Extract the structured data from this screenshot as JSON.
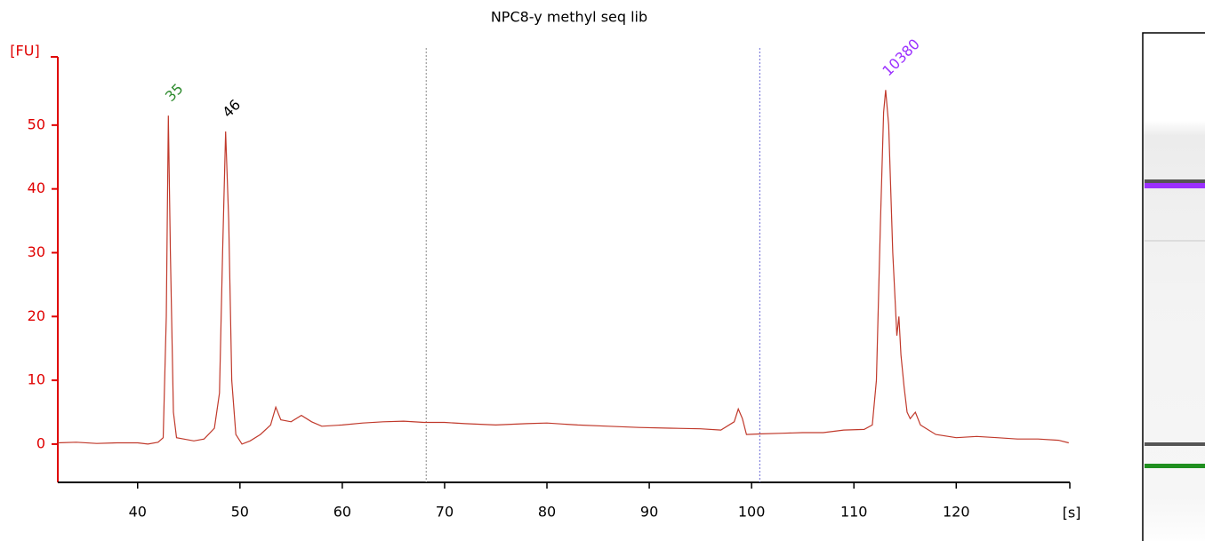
{
  "chart_data": {
    "type": "line",
    "title": "NPC8-y methyl seq lib",
    "y_label": "[FU]",
    "x_label": "[s]",
    "xlim": [
      32.2,
      131.1
    ],
    "ylim": [
      -6,
      60.7
    ],
    "xticks": [
      40,
      50,
      60,
      70,
      80,
      90,
      100,
      110,
      120
    ],
    "yticks": [
      0,
      10,
      20,
      30,
      40,
      50
    ],
    "y_axis_color": "#e00000",
    "region_lines": [
      68.2,
      100.8
    ],
    "x": [
      32.2,
      34,
      36,
      38,
      40,
      41,
      42,
      42.5,
      42.8,
      43.0,
      43.2,
      43.5,
      43.8,
      44.5,
      45.5,
      46.5,
      47.5,
      48.0,
      48.3,
      48.6,
      48.9,
      49.2,
      49.6,
      50.2,
      51,
      52,
      53,
      53.5,
      54,
      55,
      56,
      57,
      58,
      60,
      62,
      64,
      66,
      68,
      70,
      72,
      75,
      78,
      80,
      83,
      86,
      89,
      92,
      95,
      97,
      98.3,
      98.7,
      99.1,
      99.5,
      101,
      103,
      105,
      107,
      109,
      111,
      111.8,
      112.2,
      112.6,
      112.9,
      113.1,
      113.4,
      113.8,
      114.2,
      114.4,
      114.6,
      114.9,
      115.2,
      115.5,
      116,
      116.5,
      117,
      118,
      120,
      122,
      124,
      126,
      128,
      130,
      131
    ],
    "series": [
      {
        "color": "#c0392b",
        "values": [
          0.2,
          0.3,
          0.1,
          0.2,
          0.2,
          0.0,
          0.3,
          1.0,
          20,
          51.5,
          30,
          5,
          1.0,
          0.8,
          0.5,
          0.8,
          2.5,
          8,
          30,
          49,
          35,
          10,
          1.5,
          0.0,
          0.5,
          1.5,
          3,
          5.8,
          3.8,
          3.5,
          4.5,
          3.5,
          2.8,
          3.0,
          3.3,
          3.5,
          3.6,
          3.4,
          3.4,
          3.2,
          3.0,
          3.2,
          3.3,
          3.0,
          2.8,
          2.6,
          2.5,
          2.4,
          2.2,
          3.5,
          5.5,
          4.0,
          1.5,
          1.6,
          1.7,
          1.8,
          1.8,
          2.2,
          2.3,
          3,
          10,
          35,
          52,
          55.5,
          50,
          30,
          17,
          20,
          14,
          9,
          5,
          4,
          5,
          3,
          2.5,
          1.5,
          1.0,
          1.2,
          1.0,
          0.8,
          0.8,
          0.6,
          0.2
        ]
      }
    ],
    "annotations": [
      {
        "text": "35",
        "x": 43.0,
        "y": 51.5,
        "color": "#2e8b2e"
      },
      {
        "text": "46",
        "x": 48.6,
        "y": 49,
        "color": "#000000"
      },
      {
        "text": "10380",
        "x": 113.1,
        "y": 55.5,
        "color": "#9b30ff"
      }
    ]
  }
}
